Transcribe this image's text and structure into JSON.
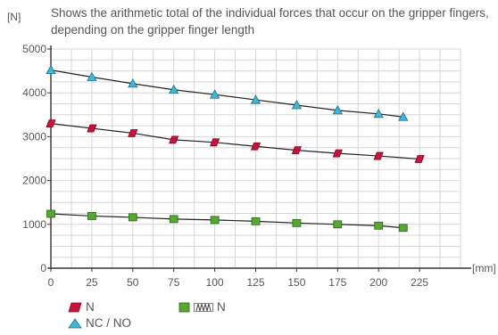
{
  "chart_data": {
    "type": "line",
    "title": "Shows the arithmetic total of the individual forces that occur on the gripper fingers, depending on the gripper finger length",
    "ylabel": "[N]",
    "xlabel": "[mm]",
    "xlim": [
      0,
      250
    ],
    "ylim": [
      0,
      5000
    ],
    "x_ticks": [
      "0",
      "25",
      "50",
      "75",
      "100",
      "125",
      "150",
      "175",
      "200",
      "225"
    ],
    "y_ticks": [
      "0",
      "1000",
      "2000",
      "3000",
      "4000",
      "5000"
    ],
    "grid": true,
    "legend_position": "bottom-left",
    "series": [
      {
        "name": "N",
        "marker": "parallelogram",
        "color": "#c8143c",
        "x": [
          0,
          25,
          50,
          75,
          100,
          125,
          150,
          175,
          200,
          225
        ],
        "y": [
          3300,
          3190,
          3080,
          2930,
          2870,
          2780,
          2690,
          2620,
          2560,
          2490
        ]
      },
      {
        "name": "NC / NO",
        "marker": "triangle",
        "color": "#3db8d8",
        "x": [
          0,
          25,
          50,
          75,
          100,
          125,
          150,
          175,
          200,
          215
        ],
        "y": [
          4520,
          4360,
          4210,
          4070,
          3960,
          3840,
          3720,
          3600,
          3520,
          3450
        ]
      },
      {
        "name": "N",
        "name_prefix_icon": "spring-icon",
        "marker": "square",
        "color": "#55a832",
        "x": [
          0,
          25,
          50,
          75,
          100,
          125,
          150,
          175,
          200,
          215
        ],
        "y": [
          1240,
          1190,
          1160,
          1120,
          1100,
          1070,
          1030,
          1000,
          970,
          920
        ]
      }
    ]
  }
}
